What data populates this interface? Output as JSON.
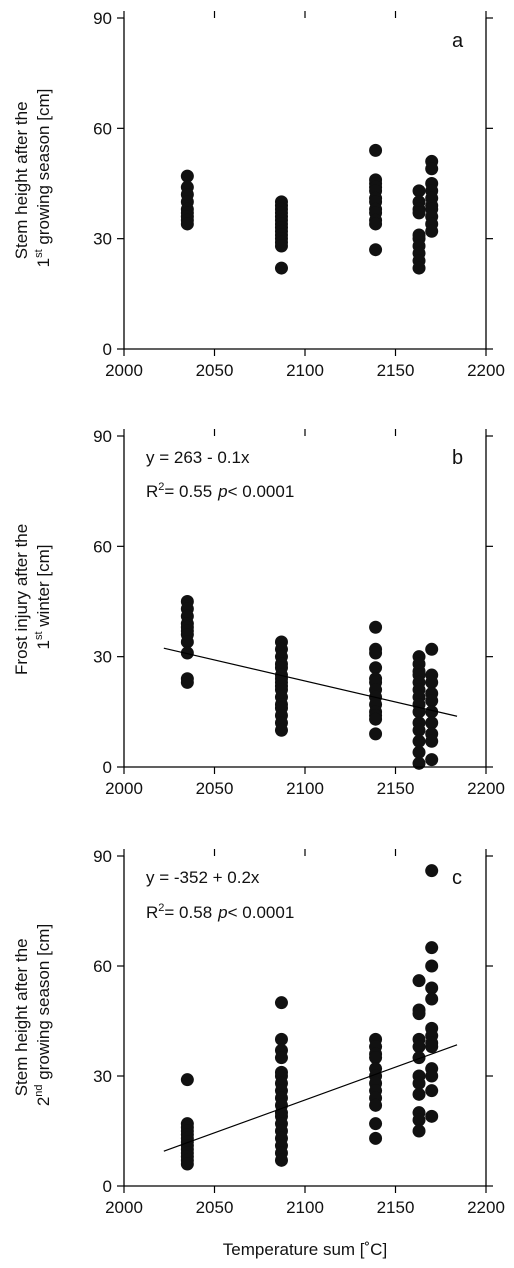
{
  "chart_data": [
    {
      "type": "scatter",
      "panel": "a",
      "ylabel_line1": "Stem height after the",
      "ylabel_line2_pre": "1",
      "ylabel_line2_sup": "st",
      "ylabel_line2_post": " growing season [cm]",
      "xlim": [
        2000,
        2200
      ],
      "ylim": [
        0,
        90
      ],
      "xticks": [
        2000,
        2050,
        2100,
        2150,
        2200
      ],
      "yticks": [
        0,
        30,
        60,
        90
      ],
      "equation": "",
      "r2_text": "",
      "points": [
        [
          2035,
          47
        ],
        [
          2035,
          44
        ],
        [
          2035,
          42
        ],
        [
          2035,
          40
        ],
        [
          2035,
          38
        ],
        [
          2035,
          37
        ],
        [
          2035,
          36
        ],
        [
          2035,
          35
        ],
        [
          2035,
          34
        ],
        [
          2087,
          40
        ],
        [
          2087,
          39
        ],
        [
          2087,
          38
        ],
        [
          2087,
          37
        ],
        [
          2087,
          36
        ],
        [
          2087,
          35
        ],
        [
          2087,
          34
        ],
        [
          2087,
          33
        ],
        [
          2087,
          32
        ],
        [
          2087,
          31
        ],
        [
          2087,
          30
        ],
        [
          2087,
          29
        ],
        [
          2087,
          28
        ],
        [
          2087,
          22
        ],
        [
          2139,
          54
        ],
        [
          2139,
          46
        ],
        [
          2139,
          45
        ],
        [
          2139,
          44
        ],
        [
          2139,
          43
        ],
        [
          2139,
          41
        ],
        [
          2139,
          40
        ],
        [
          2139,
          38
        ],
        [
          2139,
          37
        ],
        [
          2139,
          35
        ],
        [
          2139,
          34
        ],
        [
          2139,
          27
        ],
        [
          2163,
          43
        ],
        [
          2163,
          40
        ],
        [
          2163,
          38
        ],
        [
          2163,
          37
        ],
        [
          2163,
          31
        ],
        [
          2163,
          30
        ],
        [
          2163,
          28
        ],
        [
          2163,
          26
        ],
        [
          2163,
          24
        ],
        [
          2163,
          22
        ],
        [
          2170,
          51
        ],
        [
          2170,
          49
        ],
        [
          2170,
          45
        ],
        [
          2170,
          43
        ],
        [
          2170,
          41
        ],
        [
          2170,
          39
        ],
        [
          2170,
          38
        ],
        [
          2170,
          36
        ],
        [
          2170,
          34
        ],
        [
          2170,
          32
        ]
      ]
    },
    {
      "type": "scatter",
      "panel": "b",
      "ylabel_line1": "Frost injury after the",
      "ylabel_line2_pre": "1",
      "ylabel_line2_sup": "st",
      "ylabel_line2_post": " winter [cm]",
      "xlim": [
        2000,
        2200
      ],
      "ylim": [
        0,
        90
      ],
      "xticks": [
        2000,
        2050,
        2100,
        2150,
        2200
      ],
      "yticks": [
        0,
        30,
        60,
        90
      ],
      "equation": "y = 263 - 0.1x",
      "r2_text": "= 0.55",
      "p_text": "p",
      "p_value_text": "< 0.0001",
      "trend": [
        [
          2022,
          32.3
        ],
        [
          2184,
          13.8
        ]
      ],
      "points": [
        [
          2035,
          45
        ],
        [
          2035,
          43
        ],
        [
          2035,
          41
        ],
        [
          2035,
          39
        ],
        [
          2035,
          38
        ],
        [
          2035,
          37
        ],
        [
          2035,
          36
        ],
        [
          2035,
          34
        ],
        [
          2035,
          31
        ],
        [
          2035,
          24
        ],
        [
          2035,
          23
        ],
        [
          2087,
          34
        ],
        [
          2087,
          32
        ],
        [
          2087,
          30
        ],
        [
          2087,
          28
        ],
        [
          2087,
          27
        ],
        [
          2087,
          25
        ],
        [
          2087,
          24
        ],
        [
          2087,
          23
        ],
        [
          2087,
          22
        ],
        [
          2087,
          21
        ],
        [
          2087,
          19
        ],
        [
          2087,
          17
        ],
        [
          2087,
          16
        ],
        [
          2087,
          14
        ],
        [
          2087,
          12
        ],
        [
          2087,
          10
        ],
        [
          2139,
          38
        ],
        [
          2139,
          32
        ],
        [
          2139,
          31
        ],
        [
          2139,
          27
        ],
        [
          2139,
          24
        ],
        [
          2139,
          23
        ],
        [
          2139,
          21
        ],
        [
          2139,
          19
        ],
        [
          2139,
          17
        ],
        [
          2139,
          15
        ],
        [
          2139,
          14
        ],
        [
          2139,
          13
        ],
        [
          2139,
          9
        ],
        [
          2163,
          30
        ],
        [
          2163,
          28
        ],
        [
          2163,
          26
        ],
        [
          2163,
          25
        ],
        [
          2163,
          23
        ],
        [
          2163,
          21
        ],
        [
          2163,
          19
        ],
        [
          2163,
          17
        ],
        [
          2163,
          15
        ],
        [
          2163,
          12
        ],
        [
          2163,
          10
        ],
        [
          2163,
          7
        ],
        [
          2163,
          4
        ],
        [
          2163,
          1
        ],
        [
          2170,
          32
        ],
        [
          2170,
          25
        ],
        [
          2170,
          23
        ],
        [
          2170,
          20
        ],
        [
          2170,
          18
        ],
        [
          2170,
          15
        ],
        [
          2170,
          12
        ],
        [
          2170,
          9
        ],
        [
          2170,
          7
        ],
        [
          2170,
          2
        ]
      ]
    },
    {
      "type": "scatter",
      "panel": "c",
      "ylabel_line1": "Stem height after the",
      "ylabel_line2_pre": "2",
      "ylabel_line2_sup": "nd",
      "ylabel_line2_post": " growing season [cm]",
      "xlabel": "Temperature sum [˚C]",
      "xlim": [
        2000,
        2200
      ],
      "ylim": [
        0,
        90
      ],
      "xticks": [
        2000,
        2050,
        2100,
        2150,
        2200
      ],
      "yticks": [
        0,
        30,
        60,
        90
      ],
      "equation": "y = -352 + 0.2x",
      "r2_text": "= 0.58",
      "p_text": "p",
      "p_value_text": "< 0.0001",
      "trend": [
        [
          2022,
          9.5
        ],
        [
          2184,
          38.5
        ]
      ],
      "points": [
        [
          2035,
          29
        ],
        [
          2035,
          17
        ],
        [
          2035,
          16
        ],
        [
          2035,
          15
        ],
        [
          2035,
          14
        ],
        [
          2035,
          13
        ],
        [
          2035,
          12
        ],
        [
          2035,
          11
        ],
        [
          2035,
          10
        ],
        [
          2035,
          9
        ],
        [
          2035,
          8
        ],
        [
          2035,
          7
        ],
        [
          2035,
          6
        ],
        [
          2087,
          50
        ],
        [
          2087,
          40
        ],
        [
          2087,
          37
        ],
        [
          2087,
          35
        ],
        [
          2087,
          31
        ],
        [
          2087,
          30
        ],
        [
          2087,
          28
        ],
        [
          2087,
          26
        ],
        [
          2087,
          24
        ],
        [
          2087,
          22
        ],
        [
          2087,
          20
        ],
        [
          2087,
          19
        ],
        [
          2087,
          17
        ],
        [
          2087,
          15
        ],
        [
          2087,
          13
        ],
        [
          2087,
          11
        ],
        [
          2087,
          9
        ],
        [
          2087,
          7
        ],
        [
          2139,
          40
        ],
        [
          2139,
          38
        ],
        [
          2139,
          36
        ],
        [
          2139,
          35
        ],
        [
          2139,
          32
        ],
        [
          2139,
          30
        ],
        [
          2139,
          28
        ],
        [
          2139,
          26
        ],
        [
          2139,
          24
        ],
        [
          2139,
          22
        ],
        [
          2139,
          17
        ],
        [
          2139,
          13
        ],
        [
          2163,
          56
        ],
        [
          2163,
          48
        ],
        [
          2163,
          47
        ],
        [
          2163,
          40
        ],
        [
          2163,
          38
        ],
        [
          2163,
          35
        ],
        [
          2163,
          30
        ],
        [
          2163,
          28
        ],
        [
          2163,
          25
        ],
        [
          2163,
          20
        ],
        [
          2163,
          18
        ],
        [
          2163,
          15
        ],
        [
          2170,
          86
        ],
        [
          2170,
          65
        ],
        [
          2170,
          60
        ],
        [
          2170,
          54
        ],
        [
          2170,
          51
        ],
        [
          2170,
          43
        ],
        [
          2170,
          41
        ],
        [
          2170,
          39
        ],
        [
          2170,
          38
        ],
        [
          2170,
          32
        ],
        [
          2170,
          30
        ],
        [
          2170,
          26
        ],
        [
          2170,
          19
        ]
      ]
    }
  ]
}
